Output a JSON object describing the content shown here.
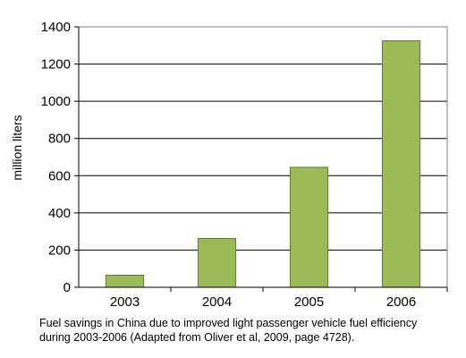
{
  "chart_data": {
    "type": "bar",
    "categories": [
      "2003",
      "2004",
      "2005",
      "2006"
    ],
    "values": [
      65,
      262,
      645,
      1325
    ],
    "title": "",
    "xlabel": "",
    "ylabel": "million liters",
    "ylim": [
      0,
      1400
    ],
    "yticks": [
      0,
      200,
      400,
      600,
      800,
      1000,
      1200,
      1400
    ],
    "grid": true,
    "legend": "none",
    "bar_color": "#9bbb59",
    "bar_edge_color": "#5e7a2c",
    "caption_lines": [
      "Fuel savings in China due to improved light passenger vehicle fuel efficiency",
      "during 2003-2006 (Adapted from Oliver et al, 2009, page 4728)."
    ]
  }
}
